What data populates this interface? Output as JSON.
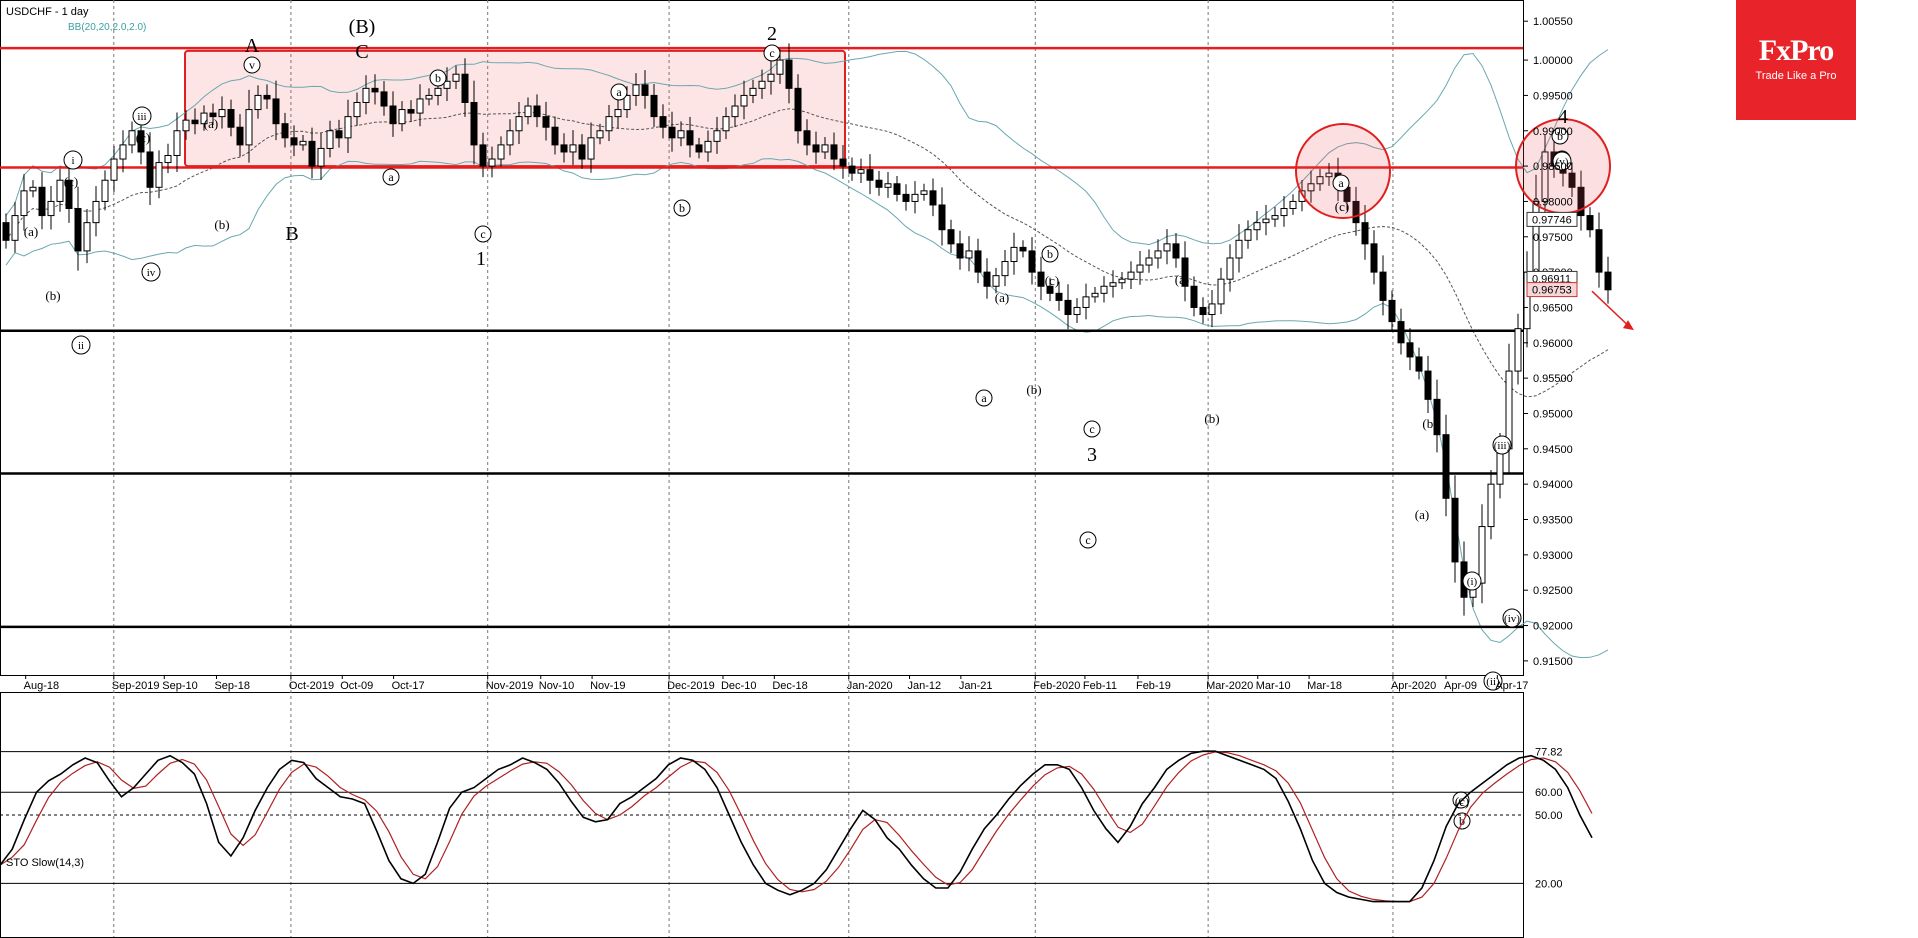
{
  "chart_data": {
    "type": "candlestick",
    "symbol_title": "USDCHF - 1 day",
    "indicator_label": "BB(20,20,2.0,2.0)",
    "y_ticks": [
      "1.00550",
      "1.00000",
      "0.99500",
      "0.99000",
      "0.98500",
      "0.98000",
      "0.97500",
      "0.97000",
      "0.96500",
      "0.96000",
      "0.95500",
      "0.95000",
      "0.94500",
      "0.94000",
      "0.93500",
      "0.93000",
      "0.92500",
      "0.92000",
      "0.91500"
    ],
    "ylim": [
      0.913,
      1.0085
    ],
    "x_ticks": [
      "Aug-18",
      "Sep-2019",
      "Sep-10",
      "Sep-18",
      "Oct-2019",
      "Oct-09",
      "Oct-17",
      "Nov-2019",
      "Nov-10",
      "Nov-19",
      "Dec-2019",
      "Dec-10",
      "Dec-18",
      "Jan-2020",
      "Jan-12",
      "Jan-21",
      "Feb-2020",
      "Feb-11",
      "Feb-19",
      "Mar-2020",
      "Mar-10",
      "Mar-18",
      "Apr-2020",
      "Apr-09",
      "Apr-17"
    ],
    "price_labels": {
      "last": "0.97746",
      "bid": "0.96911",
      "ask": "0.96753"
    },
    "resistance_levels": [
      1.0017,
      0.9848
    ],
    "support_levels": [
      0.9617,
      0.9415,
      0.9198
    ],
    "wave_labels": [
      "A",
      "(B)",
      "C",
      "B",
      "1",
      "2",
      "3",
      "4",
      "i",
      "ii",
      "iii",
      "iv",
      "v",
      "a",
      "b",
      "c",
      "(a)",
      "(b)",
      "(c)",
      "(i)",
      "(ii)",
      "(iii)",
      "(iv)",
      "(v)"
    ],
    "close": [
      0.9745,
      0.978,
      0.9815,
      0.982,
      0.978,
      0.98,
      0.983,
      0.979,
      0.973,
      0.977,
      0.98,
      0.983,
      0.986,
      0.988,
      0.99,
      0.987,
      0.982,
      0.9855,
      0.9865,
      0.99,
      0.9915,
      0.991,
      0.9925,
      0.992,
      0.993,
      0.9905,
      0.988,
      0.993,
      0.995,
      0.9945,
      0.991,
      0.989,
      0.988,
      0.9885,
      0.985,
      0.9875,
      0.99,
      0.989,
      0.992,
      0.994,
      0.996,
      0.9955,
      0.9935,
      0.991,
      0.993,
      0.9925,
      0.9945,
      0.995,
      0.996,
      0.997,
      0.998,
      0.994,
      0.988,
      0.985,
      0.986,
      0.988,
      0.99,
      0.992,
      0.9935,
      0.992,
      0.9905,
      0.988,
      0.987,
      0.988,
      0.986,
      0.989,
      0.99,
      0.992,
      0.993,
      0.995,
      0.9965,
      0.995,
      0.992,
      0.9905,
      0.989,
      0.99,
      0.988,
      0.987,
      0.9885,
      0.99,
      0.992,
      0.9935,
      0.995,
      0.996,
      0.997,
      0.998,
      1.0,
      0.996,
      0.99,
      0.988,
      0.987,
      0.988,
      0.986,
      0.985,
      0.984,
      0.9845,
      0.983,
      0.982,
      0.9825,
      0.981,
      0.98,
      0.981,
      0.9815,
      0.9795,
      0.976,
      0.974,
      0.972,
      0.973,
      0.97,
      0.968,
      0.9695,
      0.9715,
      0.9735,
      0.973,
      0.97,
      0.968,
      0.967,
      0.966,
      0.964,
      0.965,
      0.9665,
      0.967,
      0.968,
      0.9685,
      0.969,
      0.97,
      0.971,
      0.972,
      0.973,
      0.974,
      0.972,
      0.968,
      0.965,
      0.964,
      0.9655,
      0.969,
      0.972,
      0.9745,
      0.976,
      0.977,
      0.9775,
      0.978,
      0.979,
      0.98,
      0.9815,
      0.9825,
      0.9835,
      0.984,
      0.982,
      0.98,
      0.977,
      0.974,
      0.97,
      0.966,
      0.963,
      0.96,
      0.958,
      0.956,
      0.952,
      0.947,
      0.938,
      0.929,
      0.924,
      0.926,
      0.934,
      0.94,
      0.945,
      0.956,
      0.962,
      0.97,
      0.98,
      0.987,
      0.985,
      0.984,
      0.982,
      0.978,
      0.976,
      0.97,
      0.9675
    ],
    "stochastic": {
      "label": "STO Slow(14,3)",
      "levels": [
        "77.82",
        "60.00",
        "50.00",
        "20.00"
      ],
      "k": [
        28,
        35,
        48,
        60,
        65,
        68,
        72,
        75,
        73,
        65,
        58,
        62,
        68,
        74,
        76,
        73,
        68,
        55,
        38,
        32,
        40,
        52,
        62,
        70,
        74,
        73,
        66,
        62,
        58,
        57,
        55,
        43,
        30,
        22,
        20,
        24,
        38,
        53,
        60,
        62,
        66,
        70,
        72,
        75,
        73,
        70,
        64,
        56,
        49,
        47,
        48,
        55,
        58,
        62,
        66,
        72,
        75,
        74,
        70,
        62,
        50,
        38,
        28,
        20,
        17,
        15,
        17,
        20,
        26,
        35,
        44,
        52,
        48,
        40,
        35,
        28,
        22,
        18,
        18,
        25,
        35,
        44,
        50,
        57,
        63,
        68,
        72,
        72,
        70,
        62,
        52,
        44,
        38,
        45,
        55,
        62,
        70,
        74,
        77,
        78,
        78,
        76,
        74,
        72,
        70,
        66,
        56,
        44,
        30,
        20,
        16,
        14,
        13,
        12,
        12,
        12,
        12,
        18,
        30,
        45,
        55,
        60,
        64,
        68,
        72,
        75,
        76,
        74,
        70,
        62,
        50,
        40
      ]
    },
    "grid": true,
    "legend": "none"
  },
  "logo": {
    "brand": "FxPro",
    "tagline": "Trade Like a Pro"
  }
}
